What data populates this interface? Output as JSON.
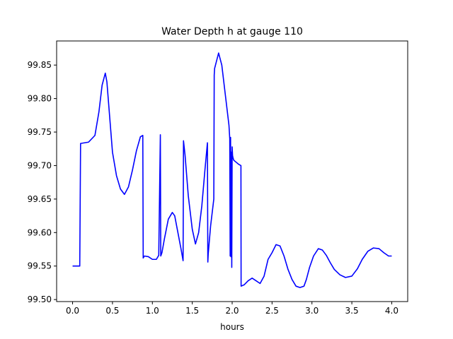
{
  "chart_data": {
    "type": "line",
    "title": "Water Depth h at gauge 110",
    "xlabel": "hours",
    "ylabel": "",
    "xlim": [
      -0.2,
      4.2
    ],
    "ylim": [
      99.497,
      99.886
    ],
    "xticks": [
      "0.0",
      "0.5",
      "1.0",
      "1.5",
      "2.0",
      "2.5",
      "3.0",
      "3.5",
      "4.0"
    ],
    "yticks": [
      "99.50",
      "99.55",
      "99.60",
      "99.65",
      "99.70",
      "99.75",
      "99.80",
      "99.85"
    ],
    "grid": false,
    "color": "#0000ff",
    "series": [
      {
        "x": [
          0.0,
          0.09,
          0.1,
          0.2,
          0.28,
          0.33,
          0.37,
          0.41,
          0.43,
          0.46,
          0.5,
          0.55,
          0.6,
          0.65,
          0.7,
          0.75,
          0.8,
          0.85,
          0.88,
          0.885,
          0.9,
          0.95,
          1.0,
          1.05,
          1.08,
          1.1,
          1.105,
          1.12,
          1.15,
          1.2,
          1.25,
          1.28,
          1.32,
          1.36,
          1.385,
          1.39,
          1.41,
          1.45,
          1.5,
          1.54,
          1.58,
          1.62,
          1.66,
          1.69,
          1.695,
          1.7,
          1.73,
          1.77,
          1.775,
          1.78,
          1.83,
          1.87,
          1.92,
          1.96,
          1.97,
          1.975,
          1.98,
          1.985,
          1.99,
          1.995,
          2.0,
          2.005,
          2.01,
          2.02,
          2.05,
          2.08,
          2.11,
          2.112,
          2.15,
          2.2,
          2.25,
          2.3,
          2.35,
          2.4,
          2.45,
          2.5,
          2.55,
          2.6,
          2.65,
          2.7,
          2.75,
          2.8,
          2.85,
          2.9,
          2.93,
          2.97,
          3.02,
          3.08,
          3.13,
          3.18,
          3.23,
          3.28,
          3.35,
          3.42,
          3.5,
          3.57,
          3.63,
          3.7,
          3.77,
          3.84,
          3.9,
          3.96,
          4.0
        ],
        "y": [
          99.55,
          99.55,
          99.733,
          99.735,
          99.745,
          99.78,
          99.82,
          99.838,
          99.825,
          99.78,
          99.72,
          99.685,
          99.665,
          99.657,
          99.668,
          99.693,
          99.722,
          99.743,
          99.745,
          99.562,
          99.565,
          99.564,
          99.56,
          99.56,
          99.566,
          99.746,
          99.565,
          99.57,
          99.59,
          99.62,
          99.63,
          99.625,
          99.6,
          99.575,
          99.558,
          99.737,
          99.715,
          99.655,
          99.605,
          99.583,
          99.6,
          99.64,
          99.695,
          99.734,
          99.556,
          99.568,
          99.61,
          99.65,
          99.835,
          99.845,
          99.868,
          99.85,
          99.8,
          99.76,
          99.74,
          99.565,
          99.742,
          99.564,
          99.72,
          99.548,
          99.728,
          99.715,
          99.712,
          99.708,
          99.705,
          99.702,
          99.7,
          99.52,
          99.522,
          99.528,
          99.532,
          99.528,
          99.524,
          99.535,
          99.56,
          99.57,
          99.582,
          99.58,
          99.565,
          99.545,
          99.53,
          99.52,
          99.518,
          99.52,
          99.53,
          99.548,
          99.565,
          99.576,
          99.574,
          99.566,
          99.555,
          99.545,
          99.537,
          99.533,
          99.535,
          99.546,
          99.56,
          99.572,
          99.577,
          99.576,
          99.57,
          99.565,
          99.565
        ]
      }
    ]
  }
}
